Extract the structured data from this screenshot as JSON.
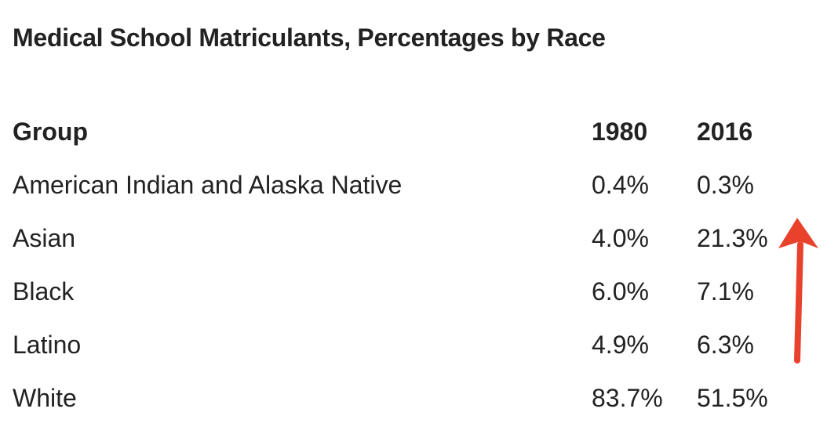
{
  "title": "Medical School Matriculants, Percentages by Race",
  "table": {
    "header": [
      "Group",
      "1980",
      "2016"
    ],
    "rows": [
      [
        "American Indian and Alaska Native",
        "0.4%",
        "0.3%"
      ],
      [
        "Asian",
        "4.0%",
        "21.3%"
      ],
      [
        "Black",
        "6.0%",
        "7.1%"
      ],
      [
        "Latino",
        "4.9%",
        "6.3%"
      ],
      [
        "White",
        "83.7%",
        "51.5%"
      ]
    ]
  }
}
